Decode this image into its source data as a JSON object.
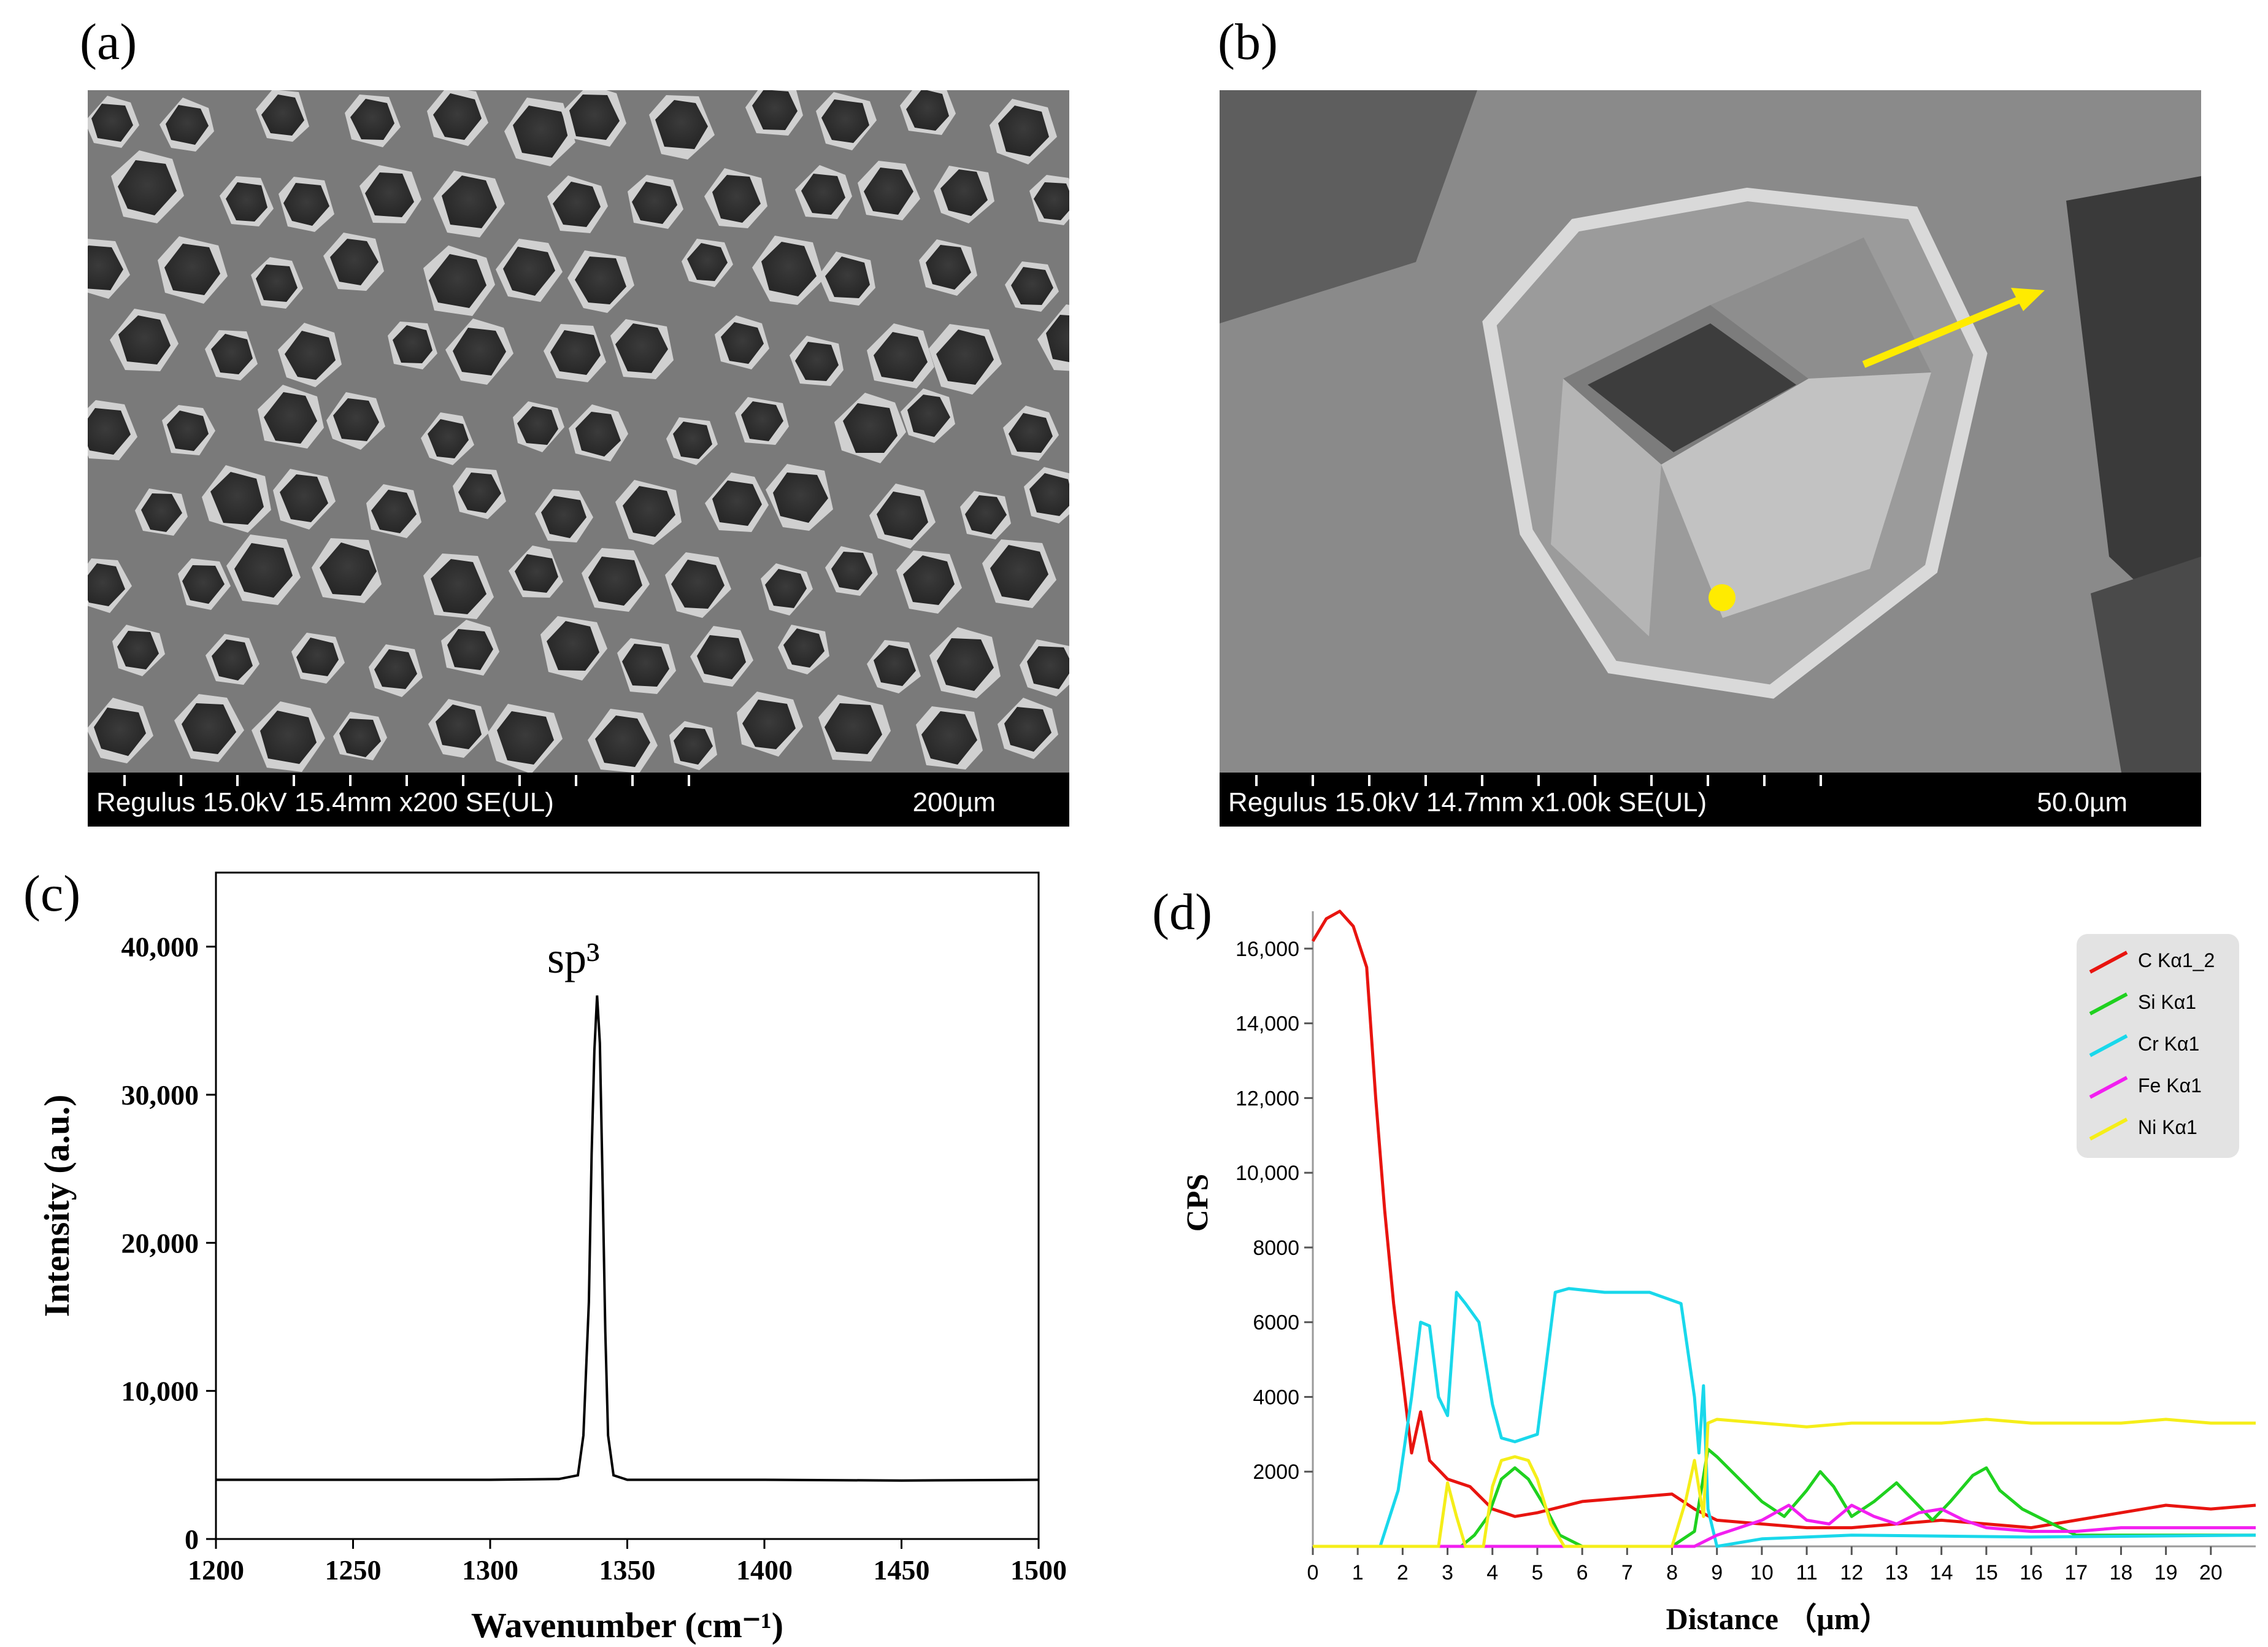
{
  "panels": {
    "a": {
      "label": "(a)",
      "sem_info": "Regulus 15.0kV 15.4mm x200 SE(UL)",
      "scale_bar": "200µm"
    },
    "b": {
      "label": "(b)",
      "sem_info": "Regulus 15.0kV 14.7mm x1.00k SE(UL)",
      "scale_bar": "50.0µm",
      "marker_color": "#ffeb00"
    },
    "c": {
      "label": "(c)"
    },
    "d": {
      "label": "(d)"
    }
  },
  "chart_data": [
    {
      "type": "line",
      "panel": "c",
      "xlabel": "Wavenumber (cm⁻¹)",
      "ylabel": "Intensity (a.u.)",
      "xlim": [
        1200,
        1500
      ],
      "ylim": [
        0,
        45000
      ],
      "xticks": [
        "1200",
        "1250",
        "1300",
        "1350",
        "1400",
        "1450",
        "1500"
      ],
      "yticks": [
        "0",
        "10,000",
        "20,000",
        "30,000",
        "40,000"
      ],
      "annotation": "sp³",
      "annotation_x": 1332,
      "series": [
        {
          "color": "#000000",
          "x": [
            1200,
            1250,
            1300,
            1325,
            1332,
            1334,
            1336,
            1337,
            1338,
            1339,
            1340,
            1341,
            1342,
            1343,
            1345,
            1350,
            1400,
            1450,
            1500
          ],
          "y": [
            4000,
            4000,
            4000,
            4050,
            4300,
            7000,
            16000,
            26000,
            33000,
            36700,
            33500,
            24000,
            14000,
            7000,
            4300,
            4000,
            4000,
            3950,
            4000
          ]
        }
      ]
    },
    {
      "type": "line",
      "panel": "d",
      "xlabel": "Distance （μm）",
      "ylabel": "CPS",
      "xlim": [
        0,
        21
      ],
      "ylim": [
        0,
        17000
      ],
      "xticks": [
        "0",
        "1",
        "2",
        "3",
        "4",
        "5",
        "6",
        "7",
        "8",
        "9",
        "10",
        "11",
        "12",
        "13",
        "14",
        "15",
        "16",
        "17",
        "18",
        "19",
        "20"
      ],
      "yticks": [
        "2000",
        "4000",
        "6000",
        "8000",
        "10,000",
        "12,000",
        "14,000",
        "16,000"
      ],
      "legend_position": "top-right",
      "series": [
        {
          "name": "C Kα1_2",
          "color": "#e8140f",
          "x": [
            0,
            0.3,
            0.6,
            0.9,
            1.2,
            1.4,
            1.6,
            1.8,
            2.0,
            2.2,
            2.4,
            2.6,
            3.0,
            3.5,
            4.0,
            4.5,
            5.0,
            6.0,
            7.0,
            8.0,
            8.5,
            9.0,
            10.0,
            11.0,
            12.0,
            13.0,
            14.0,
            15.0,
            16.0,
            17.0,
            18.0,
            19.0,
            20.0,
            21.0
          ],
          "y": [
            16200,
            16800,
            17000,
            16600,
            15500,
            12000,
            9000,
            6500,
            4500,
            2500,
            3600,
            2300,
            1800,
            1600,
            1000,
            800,
            900,
            1200,
            1300,
            1400,
            1000,
            700,
            600,
            500,
            500,
            600,
            700,
            600,
            500,
            700,
            900,
            1100,
            1000,
            1100
          ]
        },
        {
          "name": "Si Kα1",
          "color": "#1fd11f",
          "x": [
            0,
            3.3,
            3.6,
            3.9,
            4.2,
            4.5,
            4.8,
            5.2,
            5.5,
            6.0,
            8.0,
            8.5,
            8.8,
            9.0,
            9.5,
            10.0,
            10.5,
            11.0,
            11.3,
            11.6,
            12.0,
            12.5,
            13.0,
            13.4,
            13.8,
            14.2,
            14.7,
            15.0,
            15.3,
            15.8,
            16.3,
            17.0,
            21.0
          ],
          "y": [
            0,
            0,
            300,
            800,
            1800,
            2100,
            1800,
            1000,
            300,
            0,
            0,
            400,
            2600,
            2400,
            1800,
            1200,
            800,
            1500,
            2000,
            1600,
            800,
            1200,
            1700,
            1200,
            700,
            1200,
            1900,
            2100,
            1500,
            1000,
            700,
            300,
            300
          ]
        },
        {
          "name": "Cr Kα1",
          "color": "#19d8eb",
          "x": [
            0,
            1.5,
            1.9,
            2.2,
            2.4,
            2.6,
            2.8,
            3.0,
            3.2,
            3.4,
            3.7,
            4.0,
            4.2,
            4.5,
            5.0,
            5.4,
            5.7,
            6.5,
            7.5,
            8.2,
            8.5,
            8.6,
            8.7,
            8.8,
            9.0,
            10.0,
            12.0,
            16.0,
            21.0
          ],
          "y": [
            0,
            0,
            1500,
            4000,
            6000,
            5900,
            4000,
            3500,
            6800,
            6500,
            6000,
            3800,
            2900,
            2800,
            3000,
            6800,
            6900,
            6800,
            6800,
            6500,
            4000,
            2500,
            4300,
            1000,
            0,
            200,
            300,
            250,
            300
          ]
        },
        {
          "name": "Fe Kα1",
          "color": "#f21ff0",
          "x": [
            0,
            8.5,
            9.0,
            10.0,
            10.6,
            11.0,
            11.5,
            12.0,
            12.5,
            13.0,
            13.5,
            14.0,
            14.5,
            15.0,
            16.0,
            17.0,
            18.0,
            19.0,
            20.0,
            21.0
          ],
          "y": [
            0,
            0,
            300,
            700,
            1100,
            700,
            600,
            1100,
            800,
            600,
            900,
            1000,
            700,
            500,
            400,
            400,
            500,
            500,
            500,
            500
          ]
        },
        {
          "name": "Ni Kα1",
          "color": "#f5ee19",
          "x": [
            0,
            2.8,
            3.0,
            3.2,
            3.4,
            3.8,
            4.0,
            4.2,
            4.5,
            4.8,
            5.0,
            5.3,
            5.6,
            8.0,
            8.3,
            8.5,
            8.7,
            8.8,
            9.0,
            10.0,
            11.0,
            12.0,
            13.0,
            14.0,
            15.0,
            16.0,
            17.0,
            18.0,
            19.0,
            20.0,
            21.0
          ],
          "y": [
            0,
            0,
            1700,
            800,
            0,
            0,
            1600,
            2300,
            2400,
            2300,
            1800,
            600,
            0,
            0,
            1200,
            2300,
            800,
            3300,
            3400,
            3300,
            3200,
            3300,
            3300,
            3300,
            3400,
            3300,
            3300,
            3300,
            3400,
            3300,
            3300
          ]
        }
      ]
    }
  ]
}
